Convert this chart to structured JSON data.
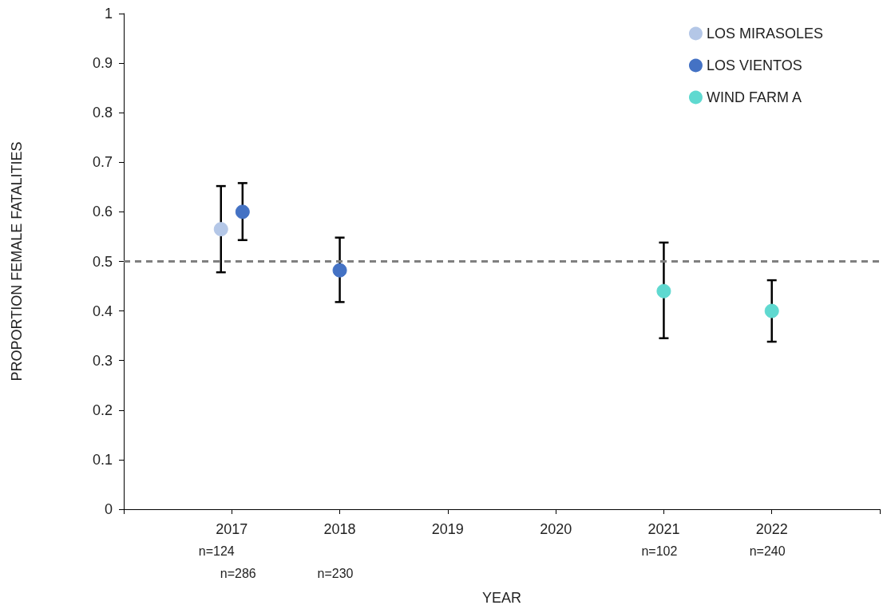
{
  "chart_data": {
    "type": "scatter",
    "xlabel": "YEAR",
    "ylabel": "PROPORTION FEMALE FATALITIES",
    "xlim": [
      2016,
      2023
    ],
    "xticks": [
      {
        "value": 2016,
        "label": null
      },
      2017,
      2018,
      2019,
      2020,
      2021,
      2022,
      {
        "value": 2023,
        "label": null
      }
    ],
    "ylim": [
      0,
      1
    ],
    "yticks": [
      0,
      0.1,
      0.2,
      0.3,
      0.4,
      0.5,
      0.6,
      0.7,
      0.8,
      0.9,
      1
    ],
    "grid": false,
    "legend": "top right",
    "marker": "circle",
    "series": [
      {
        "name": "LOS MIRASOLES",
        "color": "#b4c7e7",
        "x": [
          2016.9
        ],
        "values": [
          0.565
        ],
        "errors": [
          [
            0.478,
            0.652
          ]
        ]
      },
      {
        "name": "LOS VIENTOS",
        "color": "#4472c4",
        "x": [
          2017.1,
          2018
        ],
        "values": [
          0.6,
          0.482
        ],
        "errors": [
          [
            0.543,
            0.658
          ],
          [
            0.418,
            0.548
          ]
        ]
      },
      {
        "name": "WIND FARM A",
        "color": "#5fd9d0",
        "x": [
          2021,
          2022
        ],
        "values": [
          0.44,
          0.4
        ],
        "errors": [
          [
            0.345,
            0.538
          ],
          [
            0.338,
            0.462
          ]
        ]
      }
    ],
    "ref_lines": [
      {
        "axis": "y",
        "value": 0.5,
        "label": null,
        "color": "#808080",
        "line_style": "dashed"
      }
    ],
    "annotations": [
      "n=124",
      "n=286",
      "n=230",
      "n=102",
      "n=240"
    ]
  }
}
